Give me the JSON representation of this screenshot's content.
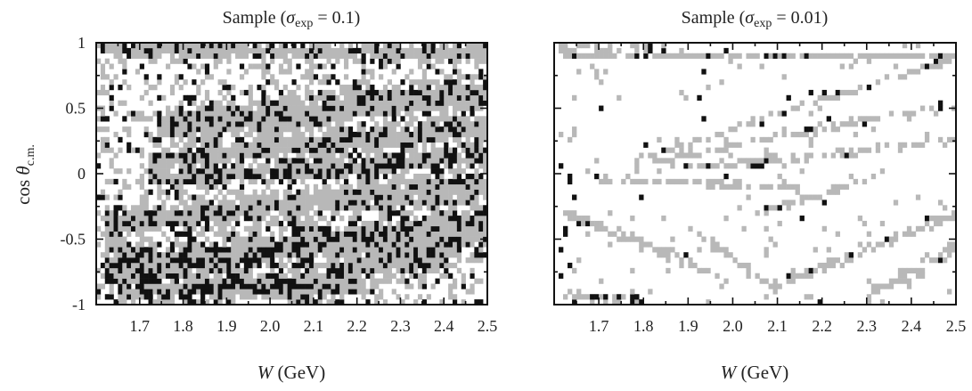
{
  "chart_data": [
    {
      "type": "heatmap",
      "title": "Sample (σexp = 0.1)",
      "title_parts": {
        "prefix": "Sample (",
        "sym": "σ",
        "sub": "exp",
        "suffix": " = 0.1)"
      },
      "xlabel": "W (GeV)",
      "xlabel_parts": {
        "var": "W",
        "unit": " (GeV)"
      },
      "ylabel": "cos θc.m.",
      "ylabel_parts": {
        "fn": "cos ",
        "sym": "θ",
        "sub": "c.m."
      },
      "xlim": [
        1.6,
        2.5
      ],
      "ylim": [
        -1,
        1
      ],
      "x_ticks": [
        "1.7",
        "1.8",
        "1.9",
        "2.0",
        "2.1",
        "2.2",
        "2.3",
        "2.4",
        "2.5"
      ],
      "y_ticks": [
        "1",
        "0.5",
        "0",
        "-0.5",
        "-1"
      ],
      "colors": {
        "high": "#111111",
        "low": "#b8b8b8",
        "background": "#ffffff"
      },
      "bands": [
        {
          "x": [
            1.61,
            2.5
          ],
          "y": [
            0.95,
            0.92
          ],
          "width": 0.09,
          "level": "mixed"
        },
        {
          "x": [
            1.74,
            2.5
          ],
          "y": [
            0.35,
            0.62
          ],
          "width": 0.2,
          "level": "mixed"
        },
        {
          "x": [
            1.72,
            2.5
          ],
          "y": [
            0.1,
            0.35
          ],
          "width": 0.16,
          "level": "mixed"
        },
        {
          "x": [
            1.72,
            2.5
          ],
          "y": [
            -0.04,
            0.12
          ],
          "width": 0.12,
          "level": "high"
        },
        {
          "x": [
            1.62,
            2.5
          ],
          "y": [
            -0.38,
            -0.08
          ],
          "width": 0.18,
          "level": "mixed"
        },
        {
          "x": [
            1.62,
            2.5
          ],
          "y": [
            -0.75,
            -0.38
          ],
          "width": 0.25,
          "level": "high"
        },
        {
          "x": [
            1.65,
            2.2
          ],
          "y": [
            -0.9,
            -0.85
          ],
          "width": 0.14,
          "level": "high"
        },
        {
          "x": [
            2.05,
            2.5
          ],
          "y": [
            -0.9,
            -0.4
          ],
          "width": 0.25,
          "level": "mixed"
        }
      ],
      "seed": 7,
      "noise": 0.34
    },
    {
      "type": "heatmap",
      "title": "Sample (σexp = 0.01)",
      "title_parts": {
        "prefix": "Sample (",
        "sym": "σ",
        "sub": "exp",
        "suffix": " = 0.01)"
      },
      "xlabel": "W (GeV)",
      "xlabel_parts": {
        "var": "W",
        "unit": " (GeV)"
      },
      "xlim": [
        1.6,
        2.5
      ],
      "ylim": [
        -1,
        1
      ],
      "x_ticks": [
        "1.7",
        "1.8",
        "1.9",
        "2.0",
        "2.1",
        "2.2",
        "2.3",
        "2.4",
        "2.5"
      ],
      "colors": {
        "high": "#111111",
        "low": "#b8b8b8",
        "background": "#ffffff"
      },
      "bands": [
        {
          "x": [
            1.61,
            1.85
          ],
          "y": [
            0.95,
            0.96
          ],
          "width": 0.05,
          "level": "low"
        },
        {
          "x": [
            1.62,
            2.5
          ],
          "y": [
            0.9,
            0.9
          ],
          "width": 0.04,
          "level": "low"
        },
        {
          "x": [
            1.78,
            2.5
          ],
          "y": [
            0.1,
            0.89
          ],
          "width": 0.04,
          "level": "low"
        },
        {
          "x": [
            1.82,
            2.5
          ],
          "y": [
            0.1,
            0.53
          ],
          "width": 0.04,
          "level": "low"
        },
        {
          "x": [
            1.9,
            2.5
          ],
          "y": [
            0.05,
            0.25
          ],
          "width": 0.04,
          "level": "low"
        },
        {
          "x": [
            1.7,
            2.15
          ],
          "y": [
            -0.05,
            -0.1
          ],
          "width": 0.04,
          "level": "low"
        },
        {
          "x": [
            1.62,
            1.95
          ],
          "y": [
            -0.3,
            -0.75
          ],
          "width": 0.06,
          "level": "low"
        },
        {
          "x": [
            1.9,
            2.1
          ],
          "y": [
            -0.4,
            -0.9
          ],
          "width": 0.05,
          "level": "low"
        },
        {
          "x": [
            2.05,
            2.35
          ],
          "y": [
            -0.3,
            0.0
          ],
          "width": 0.04,
          "level": "low"
        },
        {
          "x": [
            2.1,
            2.5
          ],
          "y": [
            -0.85,
            -0.3
          ],
          "width": 0.06,
          "level": "low"
        },
        {
          "x": [
            2.3,
            2.5
          ],
          "y": [
            -0.95,
            -0.55
          ],
          "width": 0.08,
          "level": "low"
        },
        {
          "x": [
            1.61,
            1.66
          ],
          "y": [
            -1.0,
            0.95
          ],
          "width": 0.05,
          "level": "mixed"
        },
        {
          "x": [
            1.62,
            1.8
          ],
          "y": [
            -0.95,
            -0.95
          ],
          "width": 0.06,
          "level": "mixed"
        }
      ],
      "seed": 11,
      "noise": 0.03
    }
  ]
}
